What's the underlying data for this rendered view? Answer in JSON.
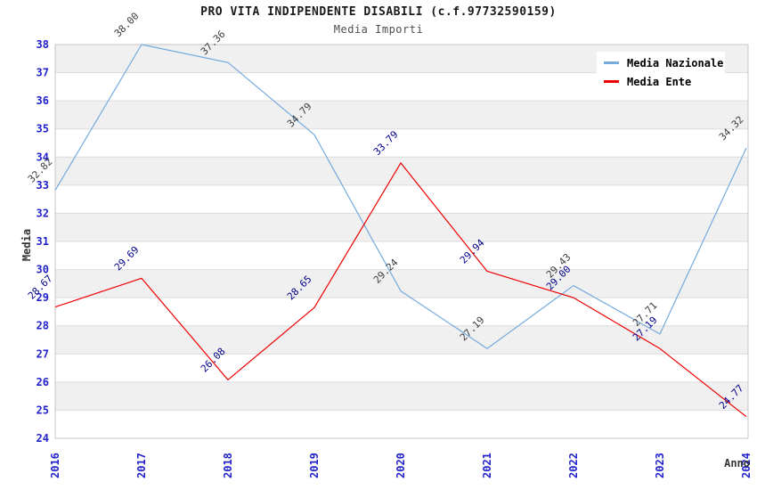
{
  "header": {
    "title": "PRO VITA INDIPENDENTE DISABILI (c.f.97732590159)",
    "subtitle": "Media Importi"
  },
  "chart_data": {
    "type": "line",
    "x": [
      2016,
      2017,
      2018,
      2019,
      2020,
      2021,
      2022,
      2023,
      2024
    ],
    "x_ticklabels": [
      "2016",
      "2017",
      "2018",
      "2019",
      "2020",
      "2021",
      "2022",
      "2023",
      "2024"
    ],
    "y_ticklabels": [
      "24",
      "25",
      "26",
      "27",
      "28",
      "29",
      "30",
      "31",
      "32",
      "33",
      "34",
      "35",
      "36",
      "37",
      "38"
    ],
    "series": [
      {
        "name": "Media Nazionale",
        "color": "#75aade",
        "label_color": "#3c3c3c",
        "values": [
          32.82,
          38.0,
          37.36,
          34.79,
          29.24,
          27.19,
          29.43,
          27.71,
          34.32
        ],
        "labels": [
          "32.82",
          "38.00",
          "37.36",
          "34.79",
          "29.24",
          "27.19",
          "29.43",
          "27.71",
          "34.32"
        ]
      },
      {
        "name": "Media Ente",
        "color": "#ee0000",
        "label_color": "#00008b",
        "values": [
          28.67,
          29.69,
          26.08,
          28.65,
          33.79,
          29.94,
          29.0,
          27.19,
          24.77
        ],
        "labels": [
          "28.67",
          "29.69",
          "26.08",
          "28.65",
          "33.79",
          "29.94",
          "29.00",
          "27.19",
          "24.77"
        ]
      }
    ],
    "xlabel": "Anno",
    "ylabel": "Media",
    "ylim": [
      24,
      38
    ],
    "ytick_step": 1,
    "grid": true,
    "legend_position": "top-right",
    "colors": {
      "band": "#f0f0f0",
      "gridline": "#dcdcdc",
      "plot_border": "#c4c4c4",
      "tick_label": "#2222cc",
      "title": "#1a1a1a",
      "subtitle": "#4d4d4d",
      "axis_title": "#333333",
      "legend_bg": "#ffffff"
    }
  }
}
